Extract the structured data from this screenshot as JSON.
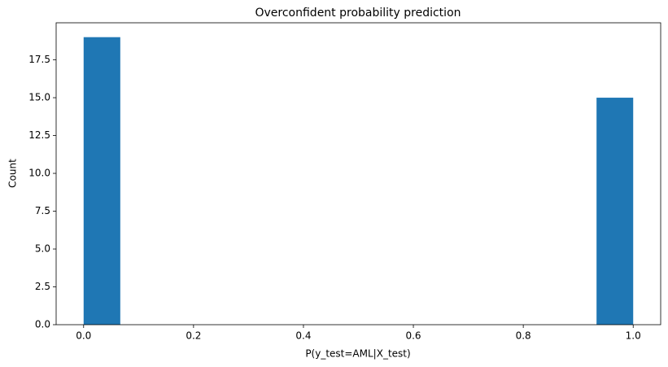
{
  "chart_data": {
    "type": "histogram",
    "title": "Overconfident probability prediction",
    "xlabel": "P(y_test=AML|X_test)",
    "ylabel": "Count",
    "color": "#1f77b4",
    "bins": [
      0,
      0.0667,
      0.1333,
      0.2,
      0.2667,
      0.3333,
      0.4,
      0.4667,
      0.5333,
      0.6,
      0.6667,
      0.7333,
      0.8,
      0.8667,
      0.9333,
      1
    ],
    "values": [
      19,
      0,
      0,
      0,
      0,
      0,
      0,
      0,
      0,
      0,
      0,
      0,
      0,
      0,
      15
    ],
    "xlim": [
      -0.05,
      1.05
    ],
    "xticks": [
      {
        "value": 0,
        "label": "0.0"
      },
      0.2,
      0.4,
      0.6,
      0.8,
      {
        "value": 1,
        "label": "1.0"
      }
    ],
    "ylim": [
      0,
      19.95
    ],
    "yticks": [
      {
        "value": 0,
        "label": "0.0"
      },
      2.5,
      {
        "value": 5,
        "label": "5.0"
      },
      7.5,
      {
        "value": 10,
        "label": "10.0"
      },
      12.5,
      {
        "value": 15,
        "label": "15.0"
      },
      17.5
    ]
  }
}
